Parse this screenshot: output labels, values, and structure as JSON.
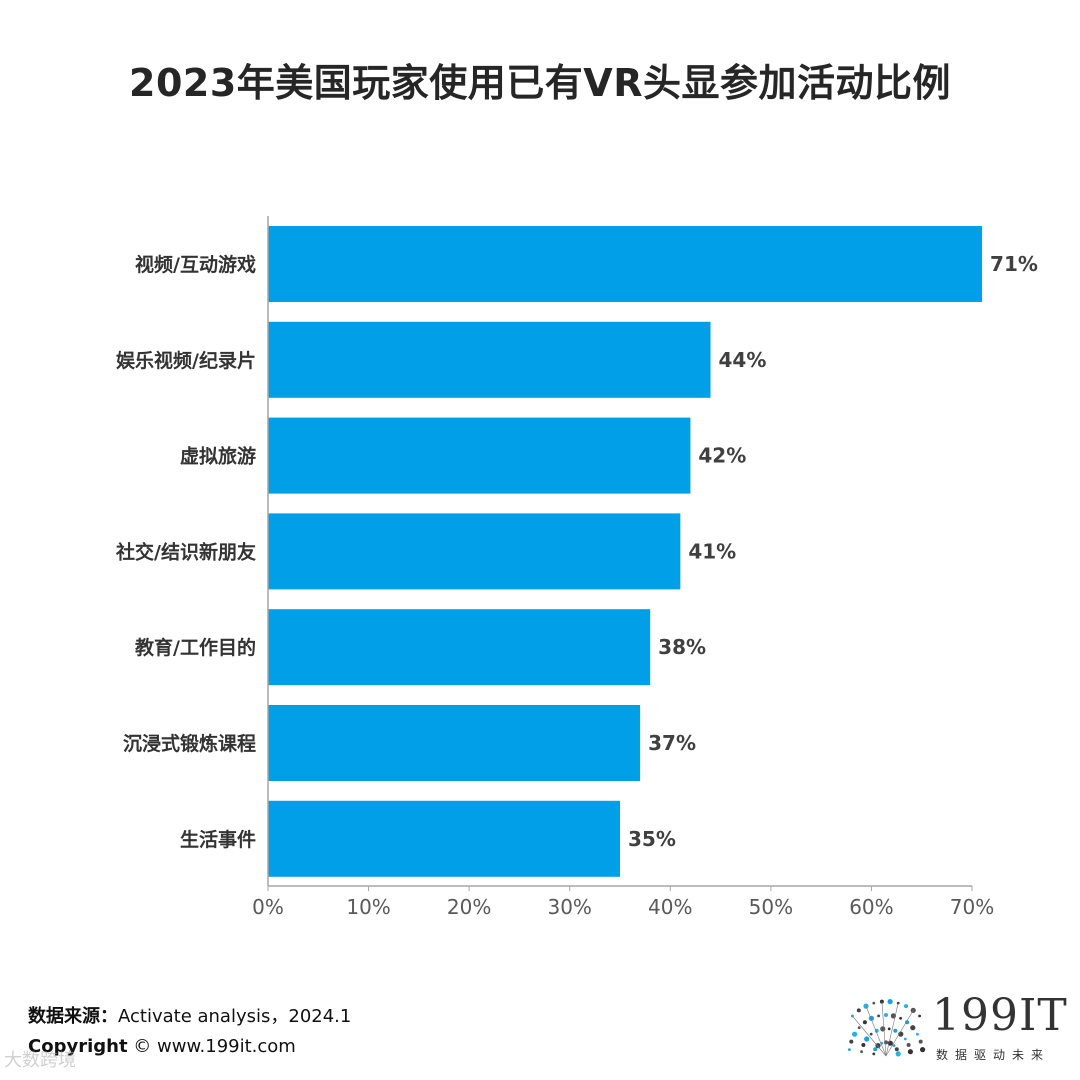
{
  "chart_data": {
    "type": "bar",
    "orientation": "horizontal",
    "title": "2023年美国玩家使用已有VR头显参加活动比例",
    "categories": [
      "视频/互动游戏",
      "娱乐视频/纪录片",
      "虚拟旅游",
      "社交/结识新朋友",
      "教育/工作目的",
      "沉浸式锻炼课程",
      "生活事件"
    ],
    "values": [
      71,
      44,
      42,
      41,
      38,
      37,
      35
    ],
    "value_labels": [
      "71%",
      "44%",
      "42%",
      "41%",
      "38%",
      "37%",
      "35%"
    ],
    "xlim": [
      0,
      70
    ],
    "x_ticks": [
      "0%",
      "10%",
      "20%",
      "30%",
      "40%",
      "50%",
      "60%",
      "70%"
    ],
    "grid": false,
    "bar_color": "#009fe8"
  },
  "footer": {
    "source_label": "数据来源：",
    "source_value": "Activate analysis，2024.1",
    "copyright_label": "Copyright",
    "copyright_value": "© www.199it.com",
    "watermark": "大数跨境"
  },
  "brand": {
    "name": "199IT",
    "slogan": "数据驱动未来",
    "logo_icon": "dandelion-dots-icon"
  }
}
